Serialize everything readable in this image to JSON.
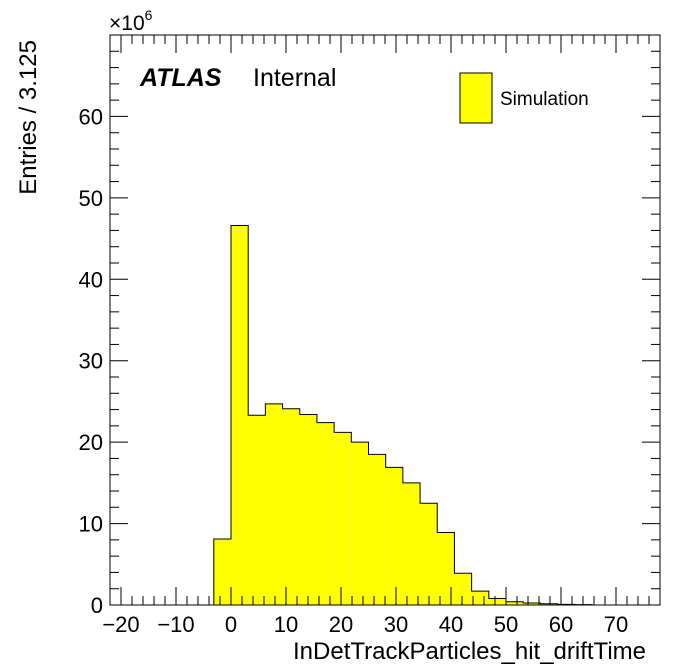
{
  "chart_data": {
    "type": "bar",
    "xlabel": "InDetTrackParticles_hit_driftTime",
    "ylabel": "Entries / 3.125",
    "y_multiplier": "×10",
    "y_multiplier_exp": "6",
    "xlim": [
      -22,
      78
    ],
    "ylim": [
      0,
      70
    ],
    "x_ticks": [
      -20,
      -10,
      0,
      10,
      20,
      30,
      40,
      50,
      60,
      70
    ],
    "x_tick_labels": [
      "−20",
      "−10",
      "0",
      "10",
      "20",
      "30",
      "40",
      "50",
      "60",
      "70"
    ],
    "y_ticks": [
      0,
      10,
      20,
      30,
      40,
      50,
      60
    ],
    "y_tick_labels": [
      "0",
      "10",
      "20",
      "30",
      "40",
      "50",
      "60"
    ],
    "bin_width": 3.125,
    "bin_edges": [
      -3.125,
      0,
      3.125,
      6.25,
      9.375,
      12.5,
      15.625,
      18.75,
      21.875,
      25,
      28.125,
      31.25,
      34.375,
      37.5,
      40.625,
      43.75,
      46.875,
      50,
      53.125,
      56.25,
      59.375,
      62.5,
      65.625
    ],
    "values": [
      8.1,
      46.6,
      23.3,
      24.7,
      24.1,
      23.4,
      22.4,
      21.2,
      20.0,
      18.5,
      16.9,
      15.0,
      12.5,
      8.9,
      3.9,
      1.7,
      0.8,
      0.4,
      0.25,
      0.15,
      0.08,
      0.04
    ],
    "series": [
      {
        "name": "Simulation",
        "color": "#ffff00"
      }
    ],
    "legend_position": "top-right",
    "annotation": {
      "atlas": "ATLAS",
      "label": "Internal"
    }
  }
}
